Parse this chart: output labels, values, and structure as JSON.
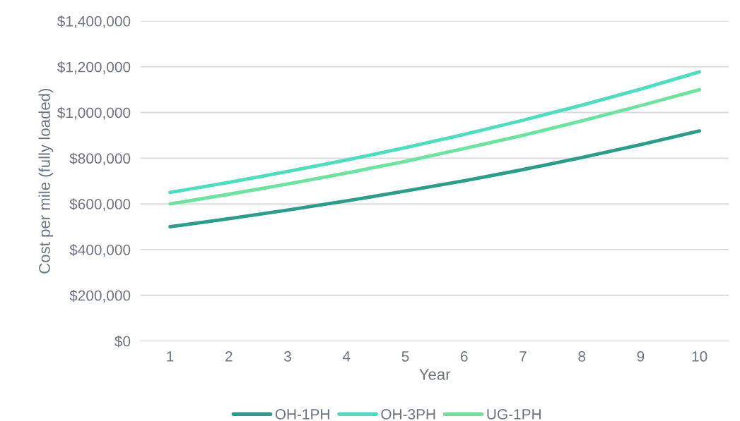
{
  "chart_data": {
    "type": "line",
    "xlabel": "Year",
    "ylabel": "Cost per mile (fully loaded)",
    "categories": [
      "1",
      "2",
      "3",
      "4",
      "5",
      "6",
      "7",
      "8",
      "9",
      "10"
    ],
    "series": [
      {
        "name": "OH-1PH",
        "color": "#2e9c8a",
        "values": [
          500000,
          535000,
          573000,
          613000,
          656000,
          701000,
          750000,
          803000,
          859000,
          919000
        ]
      },
      {
        "name": "OH-3PH",
        "color": "#4fdcbf",
        "values": [
          650000,
          694000,
          742000,
          792000,
          846000,
          904000,
          966000,
          1032000,
          1102000,
          1178000
        ]
      },
      {
        "name": "UG-1PH",
        "color": "#6ee3a0",
        "values": [
          600000,
          642000,
          687000,
          735000,
          786000,
          842000,
          900000,
          963000,
          1030000,
          1100000
        ]
      }
    ],
    "ylim": [
      0,
      1400000
    ],
    "yticks": [
      {
        "value": 0,
        "label": "$0"
      },
      {
        "value": 200000,
        "label": "$200,000"
      },
      {
        "value": 400000,
        "label": "$400,000"
      },
      {
        "value": 600000,
        "label": "$600,000"
      },
      {
        "value": 800000,
        "label": "$800,000"
      },
      {
        "value": 1000000,
        "label": "$1,000,000"
      },
      {
        "value": 1200000,
        "label": "$1,200,000"
      },
      {
        "value": 1400000,
        "label": "$1,400,000"
      }
    ],
    "grid": "y",
    "legend": "bottom",
    "line_style": "solid",
    "marker": "none"
  }
}
